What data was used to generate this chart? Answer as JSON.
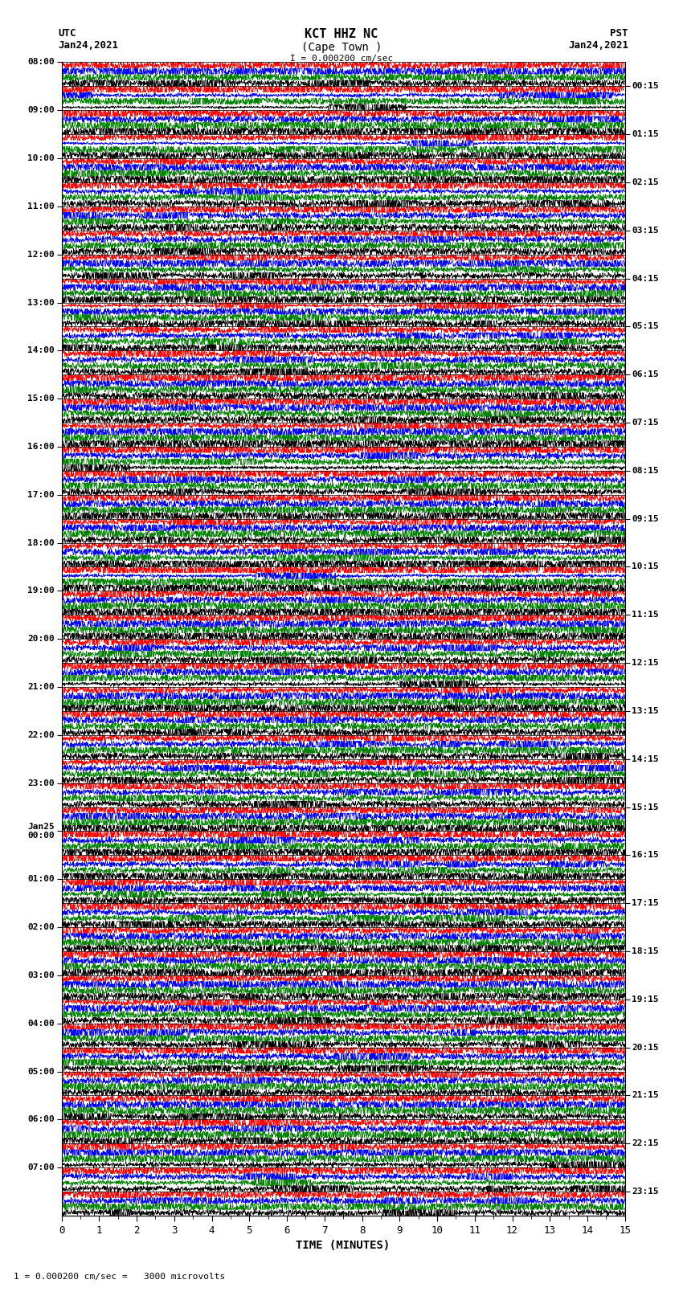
{
  "title_line1": "KCT HHZ NC",
  "title_line2": "(Cape Town )",
  "scale_label": "I = 0.000200 cm/sec",
  "left_timezone": "UTC",
  "left_date": "Jan24,2021",
  "right_timezone": "PST",
  "right_date": "Jan24,2021",
  "bottom_label": "TIME (MINUTES)",
  "footer_label": "1 = 0.000200 cm/sec =   3000 microvolts",
  "left_times": [
    "08:00",
    "09:00",
    "10:00",
    "11:00",
    "12:00",
    "13:00",
    "14:00",
    "15:00",
    "16:00",
    "17:00",
    "18:00",
    "19:00",
    "20:00",
    "21:00",
    "22:00",
    "23:00",
    "Jan25\n00:00",
    "01:00",
    "02:00",
    "03:00",
    "04:00",
    "05:00",
    "06:00",
    "07:00"
  ],
  "right_times": [
    "00:15",
    "01:15",
    "02:15",
    "03:15",
    "04:15",
    "05:15",
    "06:15",
    "07:15",
    "08:15",
    "09:15",
    "10:15",
    "11:15",
    "12:15",
    "13:15",
    "14:15",
    "15:15",
    "16:15",
    "17:15",
    "18:15",
    "19:15",
    "20:15",
    "21:15",
    "22:15",
    "23:15"
  ],
  "n_rows": 48,
  "x_min": 0,
  "x_max": 15,
  "x_ticks": [
    0,
    1,
    2,
    3,
    4,
    5,
    6,
    7,
    8,
    9,
    10,
    11,
    12,
    13,
    14,
    15
  ],
  "colors": [
    "red",
    "blue",
    "green",
    "black"
  ],
  "bg_color": "white",
  "fig_width": 8.5,
  "fig_height": 16.13,
  "dpi": 100,
  "seed": 42
}
